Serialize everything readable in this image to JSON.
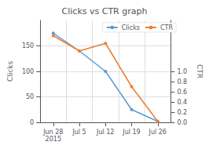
{
  "chart_data": {
    "type": "line",
    "title": "Clicks vs CTR graph",
    "categories": [
      "Jun 28\n2015",
      "Jul 5",
      "Jul 12",
      "Jul 19",
      "Jul 26"
    ],
    "series": [
      {
        "name": "Clicks",
        "color": "#5b9bd5",
        "values": [
          175,
          140,
          100,
          25,
          2
        ],
        "marker": "circle"
      },
      {
        "name": "CTR",
        "color": "#ed7d31",
        "values": [
          1.7,
          1.4,
          1.55,
          0.7,
          0.02
        ],
        "marker": "circle",
        "axis": "y2"
      }
    ],
    "ylabel": "Clicks",
    "y2label": "CTR",
    "ylim": [
      0,
      200
    ],
    "yticks": [
      0,
      50,
      100,
      150
    ],
    "y2lim": [
      0,
      2.0
    ],
    "y2ticks": [
      {
        "value": 0,
        "label": "0.0"
      },
      0.2,
      0.4,
      0.6,
      0.8,
      {
        "value": 1.0,
        "label": "1.0"
      }
    ],
    "grid": true,
    "legend": "upper right"
  }
}
